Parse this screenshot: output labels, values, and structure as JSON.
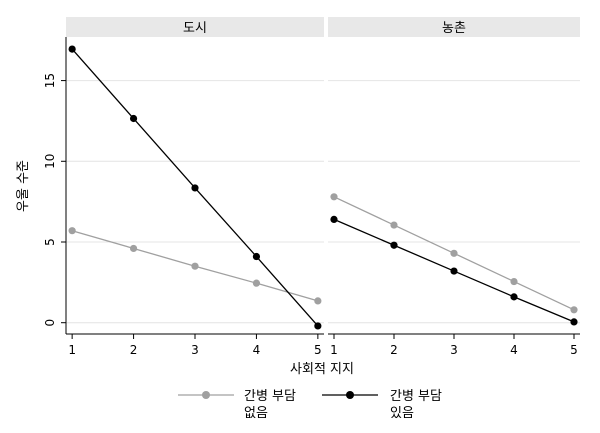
{
  "chart_data": [
    {
      "type": "line",
      "title": "도시",
      "x": [
        1,
        2,
        3,
        4,
        5
      ],
      "xlim": [
        0.9,
        5.1
      ],
      "ylim": [
        -0.7,
        17.7
      ],
      "yticks": [
        0,
        5,
        10,
        15
      ],
      "ylabel": "우울 수준",
      "grid": true,
      "series": [
        {
          "name": "간병 부담 없음",
          "values": [
            5.7,
            4.6,
            3.5,
            2.45,
            1.35
          ]
        },
        {
          "name": "간병 부담 있음",
          "values": [
            16.95,
            12.65,
            8.35,
            4.1,
            -0.2
          ]
        }
      ]
    },
    {
      "type": "line",
      "title": "농촌",
      "x": [
        1,
        2,
        3,
        4,
        5
      ],
      "xlim": [
        0.9,
        5.1
      ],
      "ylim": [
        -0.7,
        17.7
      ],
      "yticks": [
        0,
        5,
        10,
        15
      ],
      "grid": true,
      "series": [
        {
          "name": "간병 부담 없음",
          "values": [
            7.8,
            6.05,
            4.3,
            2.55,
            0.8
          ]
        },
        {
          "name": "간병 부담 있음",
          "values": [
            6.4,
            4.8,
            3.2,
            1.6,
            0.05
          ]
        }
      ]
    }
  ],
  "shared": {
    "xlabel": "사회적 지지",
    "xticks": [
      1,
      2,
      3,
      4,
      5
    ],
    "legend_position": "bottom",
    "legend": [
      {
        "line1": "간병 부담",
        "line2": "없음",
        "color": "#a0a0a0"
      },
      {
        "line1": "간병 부담",
        "line2": "있음",
        "color": "#000000"
      }
    ]
  },
  "colors": {
    "series_light": "#a0a0a0",
    "series_dark": "#000000",
    "strip_bg": "#e8e8e8",
    "grid": "#e4e4e4"
  }
}
